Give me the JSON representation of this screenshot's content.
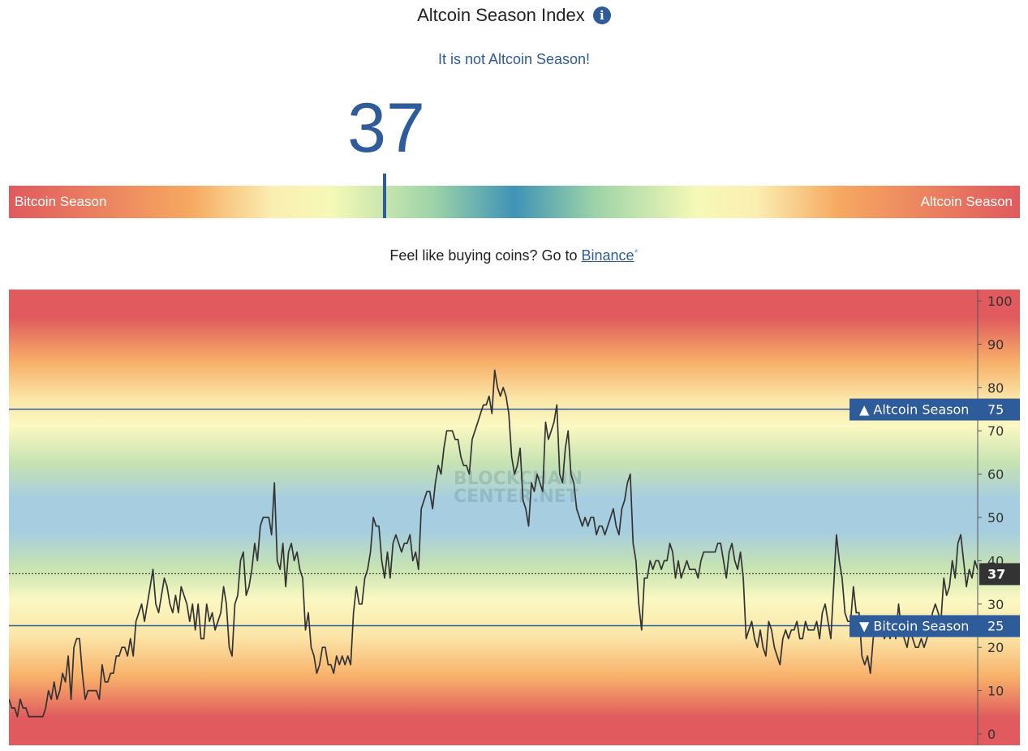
{
  "header": {
    "title": "Altcoin Season Index",
    "info_icon": "info-icon",
    "status_text": "It is not Altcoin Season!"
  },
  "gauge": {
    "value": "37",
    "left_label": "Bitcoin Season",
    "right_label": "Altcoin Season",
    "index_value": 37
  },
  "promo": {
    "text": "Feel like buying coins? Go to ",
    "link_text": "Binance",
    "asterisk": "*"
  },
  "chart_data": {
    "type": "line",
    "ylim": [
      0,
      100
    ],
    "yticks": [
      "100",
      "90",
      "80",
      "70",
      "60",
      "50",
      "40",
      "30",
      "20",
      "10",
      "0"
    ],
    "grid": false,
    "watermark": [
      "BLOCKCHAIN",
      "CENTER.NET"
    ],
    "reference_lines": [
      {
        "label": "▲ Altcoin Season",
        "value": 75,
        "value_label": "75",
        "color": "#2e5b9a"
      },
      {
        "label": "▼ Bitcoin Season",
        "value": 25,
        "value_label": "25",
        "color": "#2e5b9a"
      }
    ],
    "current": {
      "value": 37,
      "value_label": "37"
    },
    "series": [
      {
        "color": "#333333",
        "values": [
          8,
          6,
          6,
          4,
          8,
          6,
          6,
          4,
          4,
          4,
          4,
          4,
          4,
          6,
          10,
          8,
          12,
          8,
          10,
          14,
          12,
          18,
          8,
          20,
          22,
          22,
          14,
          8,
          10,
          10,
          10,
          10,
          8,
          16,
          12,
          12,
          14,
          14,
          18,
          18,
          20,
          20,
          18,
          22,
          18,
          26,
          28,
          30,
          26,
          30,
          34,
          38,
          30,
          28,
          32,
          36,
          34,
          30,
          28,
          32,
          28,
          34,
          32,
          30,
          26,
          30,
          24,
          30,
          22,
          22,
          30,
          26,
          28,
          24,
          26,
          28,
          34,
          30,
          20,
          18,
          30,
          32,
          40,
          42,
          32,
          34,
          38,
          44,
          40,
          48,
          50,
          50,
          50,
          46,
          58,
          40,
          38,
          44,
          34,
          42,
          44,
          40,
          42,
          38,
          36,
          24,
          28,
          20,
          18,
          14,
          16,
          20,
          20,
          16,
          16,
          14,
          18,
          16,
          18,
          16,
          18,
          16,
          28,
          34,
          30,
          30,
          36,
          38,
          42,
          50,
          48,
          48,
          40,
          36,
          42,
          36,
          44,
          46,
          44,
          42,
          44,
          44,
          46,
          40,
          42,
          38,
          52,
          54,
          56,
          56,
          52,
          58,
          62,
          60,
          66,
          70,
          70,
          70,
          68,
          68,
          64,
          62,
          62,
          60,
          68,
          70,
          72,
          74,
          76,
          76,
          78,
          74,
          84,
          80,
          78,
          80,
          78,
          74,
          64,
          60,
          62,
          66,
          54,
          52,
          48,
          58,
          56,
          60,
          58,
          56,
          72,
          68,
          70,
          72,
          76,
          60,
          58,
          66,
          70,
          60,
          58,
          52,
          50,
          48,
          50,
          48,
          50,
          50,
          46,
          48,
          48,
          46,
          48,
          50,
          52,
          48,
          46,
          52,
          54,
          58,
          60,
          44,
          40,
          30,
          24,
          36,
          36,
          40,
          38,
          40,
          40,
          38,
          40,
          40,
          44,
          42,
          36,
          40,
          36,
          38,
          40,
          38,
          38,
          38,
          36,
          40,
          42,
          42,
          42,
          42,
          42,
          44,
          44,
          40,
          36,
          42,
          44,
          40,
          38,
          42,
          36,
          22,
          24,
          26,
          22,
          20,
          24,
          20,
          18,
          26,
          24,
          20,
          18,
          16,
          22,
          24,
          22,
          24,
          24,
          26,
          22,
          22,
          26,
          24,
          24,
          24,
          26,
          22,
          28,
          30,
          26,
          22,
          34,
          46,
          40,
          36,
          28,
          26,
          26,
          34,
          28,
          28,
          18,
          16,
          18,
          14,
          22,
          26,
          24,
          24,
          22,
          24,
          22,
          26,
          22,
          30,
          24,
          22,
          20,
          24,
          22,
          20,
          20,
          22,
          20,
          22,
          24,
          28,
          30,
          28,
          26,
          36,
          32,
          34,
          40,
          36,
          44,
          46,
          40,
          34,
          38,
          36,
          40,
          38
        ]
      }
    ]
  }
}
